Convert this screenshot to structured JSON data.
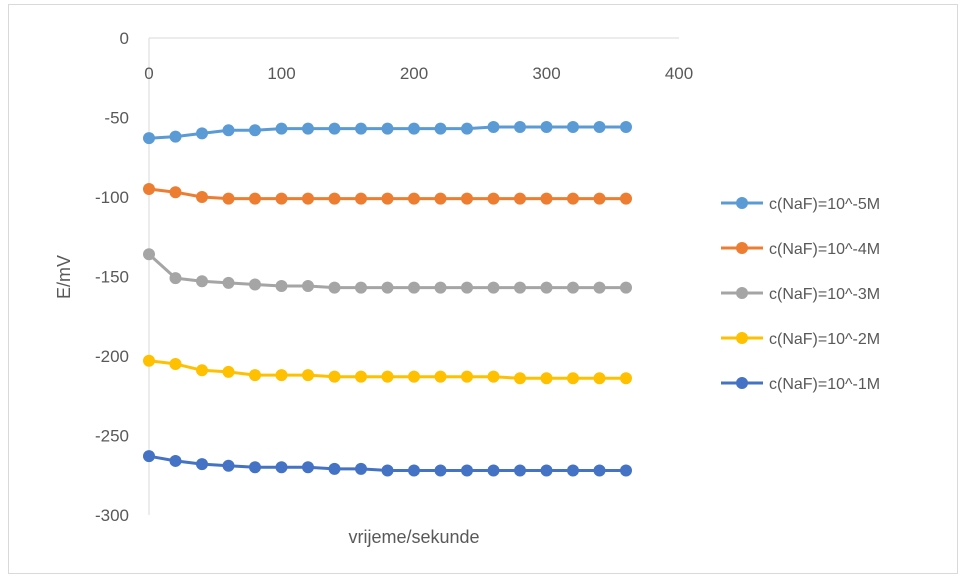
{
  "chart_data": {
    "type": "line",
    "title": "",
    "xlabel": "vrijeme/sekunde",
    "ylabel": "E/mV",
    "xlim": [
      0,
      400
    ],
    "ylim": [
      -300,
      0
    ],
    "x_ticks": [
      0,
      100,
      200,
      300,
      400
    ],
    "y_ticks": [
      0,
      -50,
      -100,
      -150,
      -200,
      -250,
      -300
    ],
    "grid": false,
    "legend_position": "right",
    "x": [
      0,
      20,
      40,
      60,
      80,
      100,
      120,
      140,
      160,
      180,
      200,
      220,
      240,
      260,
      280,
      300,
      320,
      340,
      360
    ],
    "series": [
      {
        "name": "c(NaF)=10^-5M",
        "color": "#5b9bd5",
        "values": [
          -63,
          -62,
          -60,
          -58,
          -58,
          -57,
          -57,
          -57,
          -57,
          -57,
          -57,
          -57,
          -57,
          -56,
          -56,
          -56,
          -56,
          -56,
          -56
        ]
      },
      {
        "name": "c(NaF)=10^-4M",
        "color": "#ed7d31",
        "values": [
          -95,
          -97,
          -100,
          -101,
          -101,
          -101,
          -101,
          -101,
          -101,
          -101,
          -101,
          -101,
          -101,
          -101,
          -101,
          -101,
          -101,
          -101,
          -101
        ]
      },
      {
        "name": "c(NaF)=10^-3M",
        "color": "#a5a5a5",
        "values": [
          -136,
          -151,
          -153,
          -154,
          -155,
          -156,
          -156,
          -157,
          -157,
          -157,
          -157,
          -157,
          -157,
          -157,
          -157,
          -157,
          -157,
          -157,
          -157
        ]
      },
      {
        "name": "c(NaF)=10^-2M",
        "color": "#ffc000",
        "values": [
          -203,
          -205,
          -209,
          -210,
          -212,
          -212,
          -212,
          -213,
          -213,
          -213,
          -213,
          -213,
          -213,
          -213,
          -214,
          -214,
          -214,
          -214,
          -214
        ]
      },
      {
        "name": "c(NaF)=10^-1M",
        "color": "#4472c4",
        "values": [
          -263,
          -266,
          -268,
          -269,
          -270,
          -270,
          -270,
          -271,
          -271,
          -272,
          -272,
          -272,
          -272,
          -272,
          -272,
          -272,
          -272,
          -272,
          -272
        ]
      }
    ]
  }
}
